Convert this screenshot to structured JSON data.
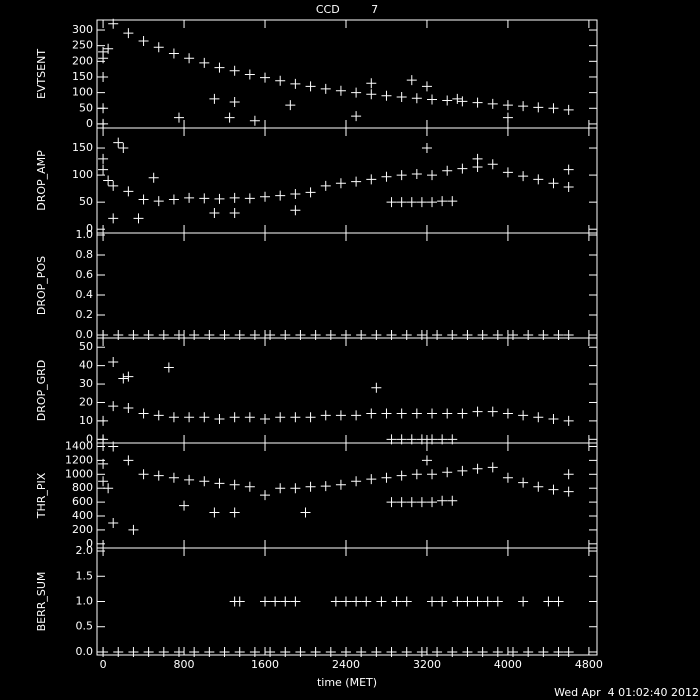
{
  "chart_data": [
    {
      "type": "scatter",
      "title": "CCD         7",
      "ylabel": "EVTSENT",
      "xlim": [
        -60,
        4880
      ],
      "xticks": [
        0,
        800,
        1600,
        2400,
        3200,
        4000,
        4800
      ],
      "ylim": [
        -13,
        332
      ],
      "yticks": [
        0,
        50,
        100,
        150,
        200,
        250,
        300
      ],
      "x": [
        100,
        250,
        400,
        550,
        700,
        850,
        1000,
        1150,
        1300,
        1450,
        1600,
        1750,
        1900,
        2050,
        2200,
        2350,
        2500,
        2650,
        2800,
        2950,
        3100,
        3250,
        3400,
        3550,
        3700,
        3850,
        4000,
        4150,
        4300,
        4450,
        4600,
        0,
        0,
        0,
        0,
        0,
        50,
        1100,
        1300,
        1250,
        1850,
        2650,
        3050,
        3200,
        3500,
        4000,
        750,
        1500,
        2500
      ],
      "values": [
        320,
        290,
        265,
        245,
        225,
        210,
        195,
        180,
        170,
        158,
        148,
        138,
        128,
        120,
        112,
        106,
        100,
        95,
        90,
        86,
        82,
        78,
        75,
        72,
        68,
        64,
        60,
        57,
        53,
        50,
        45,
        230,
        210,
        150,
        50,
        0,
        240,
        80,
        70,
        20,
        60,
        130,
        140,
        120,
        80,
        20,
        20,
        10,
        25
      ]
    },
    {
      "type": "scatter",
      "ylabel": "DROP_AMP",
      "xlim": [
        -60,
        4880
      ],
      "xticks": [
        0,
        800,
        1600,
        2400,
        3200,
        4000,
        4800
      ],
      "ylim": [
        -7,
        187
      ],
      "yticks": [
        0,
        50,
        100,
        150
      ],
      "x": [
        100,
        250,
        400,
        550,
        700,
        850,
        1000,
        1150,
        1300,
        1450,
        1600,
        1750,
        1900,
        2050,
        2200,
        2350,
        2500,
        2650,
        2800,
        2950,
        3100,
        3250,
        3400,
        3550,
        3700,
        3850,
        4000,
        4150,
        4300,
        4450,
        4600,
        2850,
        2950,
        3050,
        3150,
        3250,
        3350,
        3450,
        0,
        0,
        50,
        150,
        200,
        100,
        350,
        500,
        1100,
        1300,
        1900,
        3200,
        3700,
        4600
      ],
      "values": [
        80,
        70,
        55,
        52,
        55,
        58,
        57,
        56,
        58,
        57,
        60,
        62,
        65,
        68,
        80,
        85,
        88,
        92,
        97,
        100,
        102,
        100,
        108,
        112,
        115,
        120,
        105,
        98,
        92,
        85,
        78,
        50,
        50,
        50,
        50,
        50,
        52,
        52,
        130,
        110,
        90,
        160,
        150,
        20,
        20,
        95,
        30,
        30,
        35,
        150,
        130,
        110
      ]
    },
    {
      "type": "scatter",
      "ylabel": "DROP_POS",
      "xlim": [
        -60,
        4880
      ],
      "xticks": [
        0,
        800,
        1600,
        2400,
        3200,
        4000,
        4800
      ],
      "ylim": [
        -0.03,
        1.02
      ],
      "yticks": [
        {
          "value": 0,
          "label": "0.0"
        },
        {
          "value": 0.2,
          "label": "0.2"
        },
        {
          "value": 0.4,
          "label": "0.4"
        },
        {
          "value": 0.6,
          "label": "0.6"
        },
        {
          "value": 0.8,
          "label": "0.8"
        },
        {
          "value": 1,
          "label": "1.0"
        }
      ],
      "x": [
        0,
        150,
        300,
        450,
        600,
        750,
        900,
        1050,
        1200,
        1350,
        1500,
        1650,
        1800,
        1950,
        2100,
        2250,
        2400,
        2550,
        2700,
        2850,
        3000,
        3150,
        3300,
        3450,
        3600,
        3750,
        3900,
        4050,
        4200,
        4350,
        4500,
        4600
      ],
      "values": [
        0,
        0,
        0,
        0,
        0,
        0,
        0,
        0,
        0,
        0,
        0,
        0,
        0,
        0,
        0,
        0,
        0,
        0,
        0,
        0,
        0,
        0,
        0,
        0,
        0,
        0,
        0,
        0,
        0,
        0,
        0,
        0
      ]
    },
    {
      "type": "scatter",
      "ylabel": "DROP_GRD",
      "xlim": [
        -60,
        4880
      ],
      "xticks": [
        0,
        800,
        1600,
        2400,
        3200,
        4000,
        4800
      ],
      "ylim": [
        -2,
        55
      ],
      "yticks": [
        0,
        10,
        20,
        30,
        40,
        50
      ],
      "x": [
        100,
        250,
        400,
        550,
        700,
        850,
        1000,
        1150,
        1300,
        1450,
        1600,
        1750,
        1900,
        2050,
        2200,
        2350,
        2500,
        2650,
        2800,
        2950,
        3100,
        3250,
        3400,
        3550,
        3700,
        3850,
        4000,
        4150,
        4300,
        4450,
        4600,
        2850,
        2950,
        3050,
        3150,
        3250,
        3350,
        3450,
        100,
        200,
        250,
        650,
        2700,
        0,
        0
      ],
      "values": [
        18,
        17,
        14,
        13,
        12,
        12,
        12,
        11,
        12,
        12,
        11,
        12,
        12,
        12,
        13,
        13,
        13,
        14,
        14,
        14,
        14,
        14,
        14,
        14,
        15,
        15,
        14,
        13,
        12,
        11,
        10,
        0,
        0,
        0,
        0,
        0,
        0,
        0,
        42,
        33,
        34,
        39,
        28,
        10,
        0
      ]
    },
    {
      "type": "scatter",
      "ylabel": "THR_PIX",
      "xlim": [
        -60,
        4880
      ],
      "xticks": [
        0,
        800,
        1600,
        2400,
        3200,
        4000,
        4800
      ],
      "ylim": [
        -60,
        1450
      ],
      "yticks": [
        0,
        200,
        400,
        600,
        800,
        1000,
        1200,
        1400
      ],
      "x": [
        100,
        250,
        400,
        550,
        700,
        850,
        1000,
        1150,
        1300,
        1450,
        1600,
        1750,
        1900,
        2050,
        2200,
        2350,
        2500,
        2650,
        2800,
        2950,
        3100,
        3250,
        3400,
        3550,
        3700,
        3850,
        4000,
        4150,
        4300,
        4450,
        4600,
        2850,
        2950,
        3050,
        3150,
        3250,
        3350,
        3450,
        0,
        0,
        50,
        100,
        300,
        800,
        1100,
        1300,
        2000,
        3200,
        4600
      ],
      "values": [
        1400,
        1200,
        1000,
        980,
        950,
        920,
        900,
        870,
        850,
        820,
        700,
        800,
        800,
        820,
        830,
        850,
        900,
        930,
        950,
        980,
        1000,
        1000,
        1030,
        1050,
        1080,
        1100,
        950,
        880,
        820,
        780,
        750,
        600,
        600,
        600,
        600,
        600,
        620,
        620,
        1150,
        900,
        800,
        300,
        200,
        550,
        450,
        450,
        450,
        1200,
        1000
      ]
    },
    {
      "type": "scatter",
      "ylabel": "BERR_SUM",
      "xlabel": "time (MET)",
      "annotation": "Wed Apr  4 01:02:40 2012",
      "xlim": [
        -60,
        4880
      ],
      "xticks": [
        0,
        800,
        1600,
        2400,
        3200,
        4000,
        4800
      ],
      "ylim": [
        -0.06,
        2.06
      ],
      "yticks": [
        {
          "value": 0,
          "label": "0.0"
        },
        {
          "value": 0.5,
          "label": "0.5"
        },
        {
          "value": 1,
          "label": "1.0"
        },
        {
          "value": 1.5,
          "label": "1.5"
        },
        {
          "value": 2,
          "label": "2.0"
        }
      ],
      "x": [
        0,
        150,
        300,
        450,
        600,
        750,
        900,
        1050,
        1200,
        1350,
        1500,
        1650,
        1800,
        1950,
        2100,
        2250,
        2400,
        2550,
        2700,
        2850,
        3000,
        3150,
        3300,
        3450,
        3600,
        3750,
        3900,
        4050,
        4200,
        4350,
        4500,
        4600,
        1300,
        1350,
        1600,
        1700,
        1800,
        1900,
        2300,
        2400,
        2500,
        2600,
        2750,
        2900,
        3000,
        3250,
        3350,
        3500,
        3600,
        3700,
        3800,
        3900,
        4150,
        4400,
        4500
      ],
      "values": [
        0,
        0,
        0,
        0,
        0,
        0,
        0,
        0,
        0,
        0,
        0,
        0,
        0,
        0,
        0,
        0,
        0,
        0,
        0,
        0,
        0,
        0,
        0,
        0,
        0,
        0,
        0,
        0,
        0,
        0,
        0,
        0,
        1,
        1,
        1,
        1,
        1,
        1,
        1,
        1,
        1,
        1,
        1,
        1,
        1,
        1,
        1,
        1,
        1,
        1,
        1,
        1,
        1,
        1,
        1
      ]
    }
  ]
}
